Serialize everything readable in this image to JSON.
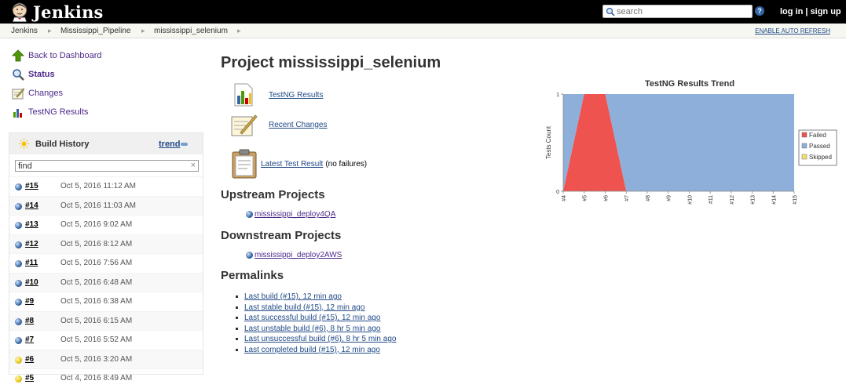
{
  "header": {
    "logo_text": "Jenkins",
    "search_placeholder": "search",
    "login": "log in",
    "signup": "sign up",
    "login_sep": "|"
  },
  "breadcrumbs": [
    "Jenkins",
    "Mississippi_Pipeline",
    "mississippi_selenium"
  ],
  "auto_refresh": "ENABLE AUTO REFRESH",
  "tasks": {
    "back": "Back to Dashboard",
    "status": "Status",
    "changes": "Changes",
    "testng": "TestNG Results"
  },
  "build_history": {
    "title": "Build History",
    "trend": "trend",
    "find_value": "find",
    "builds": [
      {
        "num": "#15",
        "date": "Oct 5, 2016 11:12 AM",
        "status": "blue"
      },
      {
        "num": "#14",
        "date": "Oct 5, 2016 11:03 AM",
        "status": "blue"
      },
      {
        "num": "#13",
        "date": "Oct 5, 2016 9:02 AM",
        "status": "blue"
      },
      {
        "num": "#12",
        "date": "Oct 5, 2016 8:12 AM",
        "status": "blue"
      },
      {
        "num": "#11",
        "date": "Oct 5, 2016 7:56 AM",
        "status": "blue"
      },
      {
        "num": "#10",
        "date": "Oct 5, 2016 6:48 AM",
        "status": "blue"
      },
      {
        "num": "#9",
        "date": "Oct 5, 2016 6:38 AM",
        "status": "blue"
      },
      {
        "num": "#8",
        "date": "Oct 5, 2016 6:15 AM",
        "status": "blue"
      },
      {
        "num": "#7",
        "date": "Oct 5, 2016 5:52 AM",
        "status": "blue"
      },
      {
        "num": "#6",
        "date": "Oct 5, 2016 3:20 AM",
        "status": "yellow"
      },
      {
        "num": "#5",
        "date": "Oct 4, 2016 8:49 AM",
        "status": "yellow"
      }
    ]
  },
  "main": {
    "title": "Project mississippi_selenium",
    "testng_link": "TestNG Results",
    "recent_changes": "Recent Changes",
    "latest_test": "Latest Test Result",
    "latest_test_suffix": "(no failures)",
    "upstream_head": "Upstream Projects",
    "upstream": "mississippi_deploy4QA",
    "downstream_head": "Downstream Projects",
    "downstream": "mississippi_deploy2AWS",
    "permalinks_head": "Permalinks",
    "permalinks": [
      "Last build (#15), 12 min ago",
      "Last stable build (#15), 12 min ago",
      "Last successful build (#15), 12 min ago",
      "Last unstable build (#6), 8 hr 5 min ago",
      "Last unsuccessful build (#6), 8 hr 5 min ago",
      "Last completed build (#15), 12 min ago"
    ]
  },
  "chart_data": {
    "type": "area",
    "title": "TestNG Results Trend",
    "ylabel": "Tests Count",
    "xlabel": "",
    "categories": [
      "#4",
      "#5",
      "#6",
      "#7",
      "#8",
      "#9",
      "#10",
      "#11",
      "#12",
      "#13",
      "#14",
      "#15"
    ],
    "ylim": [
      0,
      1
    ],
    "yticks": [
      "0",
      "1"
    ],
    "series": [
      {
        "name": "Failed",
        "values": [
          0,
          1,
          1,
          0,
          0,
          0,
          0,
          0,
          0,
          0,
          0,
          0
        ]
      },
      {
        "name": "Passed",
        "values": [
          1,
          0,
          0,
          1,
          1,
          1,
          1,
          1,
          1,
          1,
          1,
          1
        ]
      },
      {
        "name": "Skipped",
        "values": [
          0,
          0,
          0,
          0,
          0,
          0,
          0,
          0,
          0,
          0,
          0,
          0
        ]
      }
    ],
    "colors": {
      "Failed": "#ef5350",
      "Passed": "#8fafdb",
      "Skipped": "#f5e16a"
    },
    "legend": "right"
  }
}
